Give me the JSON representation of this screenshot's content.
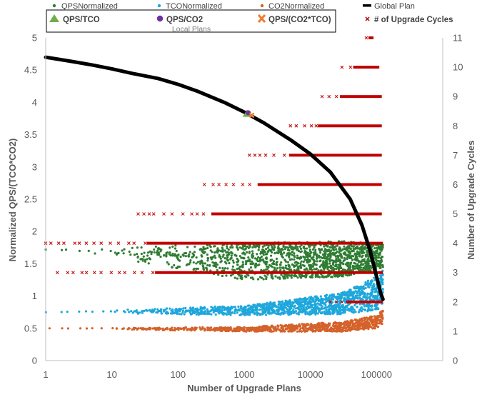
{
  "chart_data": {
    "type": "scatter",
    "title": "",
    "xlabel": "Number of Upgrade Plans",
    "ylabel": "Normalized  QPS/(TCO*CO2)",
    "y2label": "Number  of  Upgrade Cycles",
    "xscale": "log",
    "xlim": [
      1,
      1000000
    ],
    "ylim": [
      0,
      5
    ],
    "y2lim": [
      0,
      11
    ],
    "grid": false,
    "x_ticks": [
      "1",
      "10",
      "100",
      "1000",
      "10000",
      "100000"
    ],
    "y_ticks": [
      "0",
      "0.5",
      "1",
      "1.5",
      "2",
      "2.5",
      "3",
      "3.5",
      "4",
      "4.5",
      "5"
    ],
    "y2_ticks": [
      "0",
      "1",
      "2",
      "3",
      "4",
      "5",
      "6",
      "7",
      "8",
      "9",
      "10",
      "11"
    ],
    "legend_placement": "top",
    "legend": {
      "row1": [
        "QPSNormalized",
        "TCONormalized",
        "CO2Normalized",
        "Global Plan"
      ],
      "row2": [
        "QPS/TCO",
        "QPS/CO2",
        "QPS/(CO2*TCO)",
        "# of Upgrade Cycles"
      ],
      "group_label": "Local Plans"
    },
    "colors": {
      "qps": "#2e7d32",
      "tco": "#1ea7dc",
      "co2": "#d4622a",
      "global": "#000000",
      "cycles": "#c00000",
      "qps_tco": "#70ad47",
      "qps_co2": "#7030a0",
      "qps_co2_tco": "#ed7d31"
    },
    "series": [
      {
        "name": "Global Plan",
        "axis": "left",
        "x": [
          1,
          2,
          3,
          5,
          10,
          20,
          50,
          100,
          200,
          500,
          1000,
          2000,
          5000,
          10000,
          20000,
          40000,
          60000,
          80000,
          100000,
          115000,
          125000
        ],
        "values": [
          4.7,
          4.65,
          4.62,
          4.58,
          4.52,
          4.45,
          4.37,
          4.28,
          4.17,
          4.0,
          3.85,
          3.68,
          3.42,
          3.2,
          2.92,
          2.5,
          2.1,
          1.7,
          1.3,
          1.05,
          0.95
        ]
      },
      {
        "name": "QPSNormalized",
        "axis": "left",
        "x": [
          1,
          1000,
          30000,
          100000,
          125000
        ],
        "lower": [
          1.72,
          1.25,
          1.3,
          1.4,
          1.45
        ],
        "upper": [
          1.72,
          1.82,
          1.85,
          1.82,
          1.8
        ]
      },
      {
        "name": "TCONormalized",
        "axis": "left",
        "x": [
          1,
          1000,
          30000,
          100000,
          125000
        ],
        "lower": [
          0.75,
          0.7,
          0.72,
          0.78,
          0.85
        ],
        "upper": [
          0.75,
          0.85,
          1.05,
          1.3,
          1.4
        ]
      },
      {
        "name": "CO2Normalized",
        "axis": "left",
        "x": [
          1,
          1000,
          30000,
          100000,
          125000
        ],
        "lower": [
          0.5,
          0.45,
          0.45,
          0.5,
          0.55
        ],
        "upper": [
          0.5,
          0.52,
          0.6,
          0.7,
          0.8
        ]
      },
      {
        "name": "# of Upgrade Cycles",
        "axis": "right",
        "cycles": [
          {
            "y": 2,
            "x": [
              20000,
              125000
            ]
          },
          {
            "y": 3,
            "x": [
              1.5,
              125000
            ]
          },
          {
            "y": 4,
            "x": [
              1,
              125000
            ]
          },
          {
            "y": 5,
            "x": [
              25,
              120000
            ]
          },
          {
            "y": 6,
            "x": [
              250,
              120000
            ]
          },
          {
            "y": 7,
            "x": [
              1200,
              120000
            ]
          },
          {
            "y": 8,
            "x": [
              5000,
              120000
            ]
          },
          {
            "y": 9,
            "x": [
              15000,
              120000
            ]
          },
          {
            "y": 10,
            "x": [
              30000,
              110000
            ]
          },
          {
            "y": 11,
            "x": [
              70000,
              90000
            ]
          }
        ]
      },
      {
        "name": "QPS/TCO",
        "axis": "left",
        "x": [
          1100
        ],
        "values": [
          3.82
        ]
      },
      {
        "name": "QPS/CO2",
        "axis": "left",
        "x": [
          1150
        ],
        "values": [
          3.84
        ]
      },
      {
        "name": "QPS/(CO2*TCO)",
        "axis": "left",
        "x": [
          1300
        ],
        "values": [
          3.8
        ]
      }
    ]
  }
}
